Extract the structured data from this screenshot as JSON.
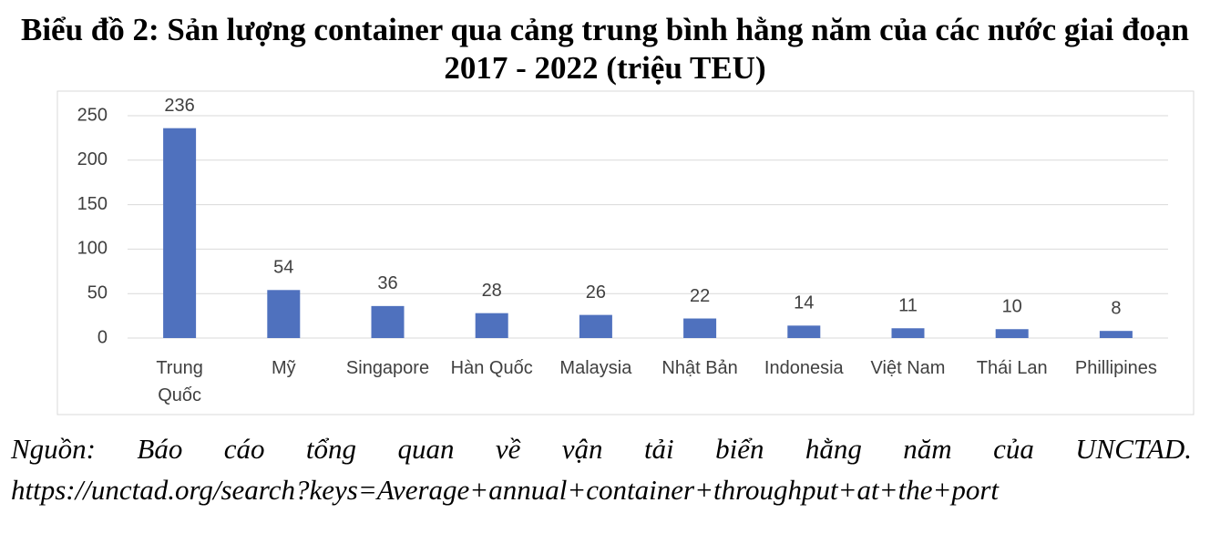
{
  "chart_data": {
    "type": "bar",
    "title": "Biểu đồ 2: Sản lượng container qua cảng trung bình hằng năm của các nước giai đoạn 2017 - 2022 (triệu TEU)",
    "categories": [
      "Trung Quốc",
      "Mỹ",
      "Singapore",
      "Hàn Quốc",
      "Malaysia",
      "Nhật Bản",
      "Indonesia",
      "Việt Nam",
      "Thái Lan",
      "Phillipines"
    ],
    "values": [
      236,
      54,
      36,
      28,
      26,
      22,
      14,
      11,
      10,
      8
    ],
    "color": "#4f71be",
    "ylim": [
      0,
      250
    ],
    "yticks": [
      0,
      50,
      100,
      150,
      200,
      250
    ],
    "grid": true
  },
  "source": {
    "text": "Nguồn: Báo cáo tổng quan về vận tải biển hằng năm của UNCTAD.",
    "url": "https://unctad.org/search?keys=Average+annual+container+throughput+at+the+port"
  }
}
